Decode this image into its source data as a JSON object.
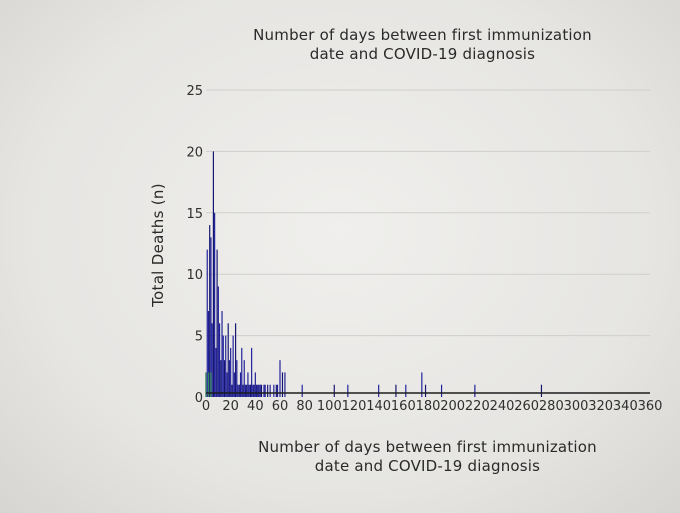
{
  "chart_data": {
    "type": "bar",
    "title": "Number of days between first immunization date and COVID-19 diagnosis",
    "title_lines": [
      "Number of days between first immunization",
      "date and COVID-19 diagnosis"
    ],
    "xlabel_lines": [
      "Number of days between first immunization",
      "date and COVID-19 diagnosis"
    ],
    "xlabel": "Number of days between first immunization date and COVID-19 diagnosis",
    "ylabel": "Total Deaths (n)",
    "xlim": [
      0,
      360
    ],
    "ylim": [
      0,
      25
    ],
    "x_ticks": [
      0,
      20,
      40,
      60,
      80,
      100,
      120,
      140,
      160,
      180,
      200,
      220,
      240,
      260,
      280,
      300,
      320,
      340,
      360
    ],
    "y_ticks": [
      0,
      5,
      10,
      15,
      20,
      25
    ],
    "grid": true,
    "bar_color": "#1f1f9a",
    "accent_color": "#2e8b57",
    "x": [
      0,
      1,
      2,
      3,
      4,
      5,
      6,
      7,
      8,
      9,
      10,
      11,
      12,
      13,
      14,
      15,
      16,
      17,
      18,
      19,
      20,
      21,
      22,
      23,
      24,
      25,
      26,
      27,
      28,
      29,
      30,
      31,
      32,
      33,
      34,
      35,
      36,
      37,
      38,
      39,
      40,
      41,
      42,
      43,
      44,
      45,
      47,
      48,
      50,
      52,
      55,
      57,
      58,
      60,
      62,
      64,
      78,
      104,
      115,
      140,
      154,
      162,
      175,
      178,
      191,
      218,
      272
    ],
    "values": [
      2,
      12,
      7,
      14,
      13,
      6,
      20,
      15,
      4,
      12,
      9,
      6,
      3,
      7,
      5,
      3,
      5,
      2,
      6,
      3,
      4,
      1,
      5,
      2,
      6,
      3,
      1,
      1,
      2,
      4,
      1,
      3,
      1,
      1,
      2,
      1,
      1,
      4,
      1,
      1,
      2,
      1,
      1,
      1,
      1,
      1,
      1,
      1,
      1,
      1,
      1,
      1,
      1,
      3,
      2,
      2,
      1,
      1,
      1,
      1,
      1,
      1,
      2,
      1,
      1,
      1,
      1
    ]
  }
}
